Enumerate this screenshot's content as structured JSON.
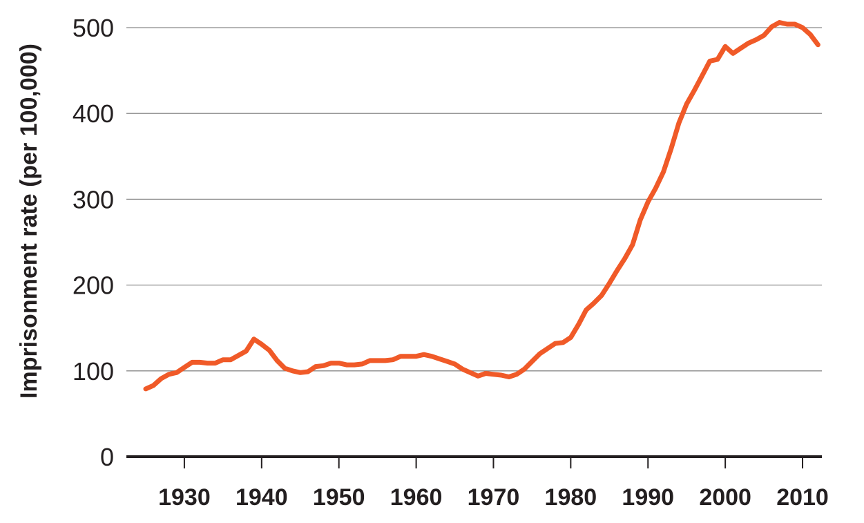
{
  "chart_data": {
    "type": "line",
    "title": "",
    "xlabel": "",
    "ylabel": "Imprisonment rate (per 100,000)",
    "xlim": [
      1922.5,
      2012.5
    ],
    "ylim": [
      0,
      500
    ],
    "grid": true,
    "yticks": [
      0,
      100,
      200,
      300,
      400,
      500
    ],
    "ytick_labels": [
      "0",
      "100",
      "200",
      "300",
      "400",
      "500"
    ],
    "xticks": [
      1930,
      1940,
      1950,
      1960,
      1970,
      1980,
      1990,
      2000,
      2010
    ],
    "xtick_labels": [
      "1930",
      "1940",
      "1950",
      "1960",
      "1970",
      "1980",
      "1990",
      "2000",
      "2010"
    ],
    "series": [
      {
        "color": "#f05a28",
        "x": [
          1925,
          1926,
          1927,
          1928,
          1929,
          1930,
          1931,
          1932,
          1933,
          1934,
          1935,
          1936,
          1937,
          1938,
          1939,
          1940,
          1941,
          1942,
          1943,
          1944,
          1945,
          1946,
          1947,
          1948,
          1949,
          1950,
          1951,
          1952,
          1953,
          1954,
          1955,
          1956,
          1957,
          1958,
          1959,
          1960,
          1961,
          1962,
          1963,
          1964,
          1965,
          1966,
          1967,
          1968,
          1969,
          1970,
          1971,
          1972,
          1973,
          1974,
          1975,
          1976,
          1977,
          1978,
          1979,
          1980,
          1981,
          1982,
          1983,
          1984,
          1985,
          1986,
          1987,
          1988,
          1989,
          1990,
          1991,
          1992,
          1993,
          1994,
          1995,
          1996,
          1997,
          1998,
          1999,
          2000,
          2001,
          2002,
          2003,
          2004,
          2005,
          2006,
          2007,
          2008,
          2009,
          2010,
          2011,
          2012
        ],
        "values": [
          79,
          83,
          91,
          96,
          98,
          104,
          110,
          110,
          109,
          109,
          113,
          113,
          118,
          123,
          137,
          131,
          124,
          112,
          103,
          100,
          98,
          99,
          105,
          106,
          109,
          109,
          107,
          107,
          108,
          112,
          112,
          112,
          113,
          117,
          117,
          117,
          119,
          117,
          114,
          111,
          108,
          102,
          98,
          94,
          97,
          96,
          95,
          93,
          96,
          102,
          111,
          120,
          126,
          132,
          133,
          139,
          154,
          171,
          179,
          188,
          202,
          217,
          231,
          247,
          276,
          297,
          313,
          332,
          359,
          389,
          411,
          427,
          444,
          461,
          463,
          478,
          470,
          476,
          482,
          486,
          491,
          501,
          506,
          504,
          504,
          500,
          492,
          480
        ]
      }
    ]
  }
}
